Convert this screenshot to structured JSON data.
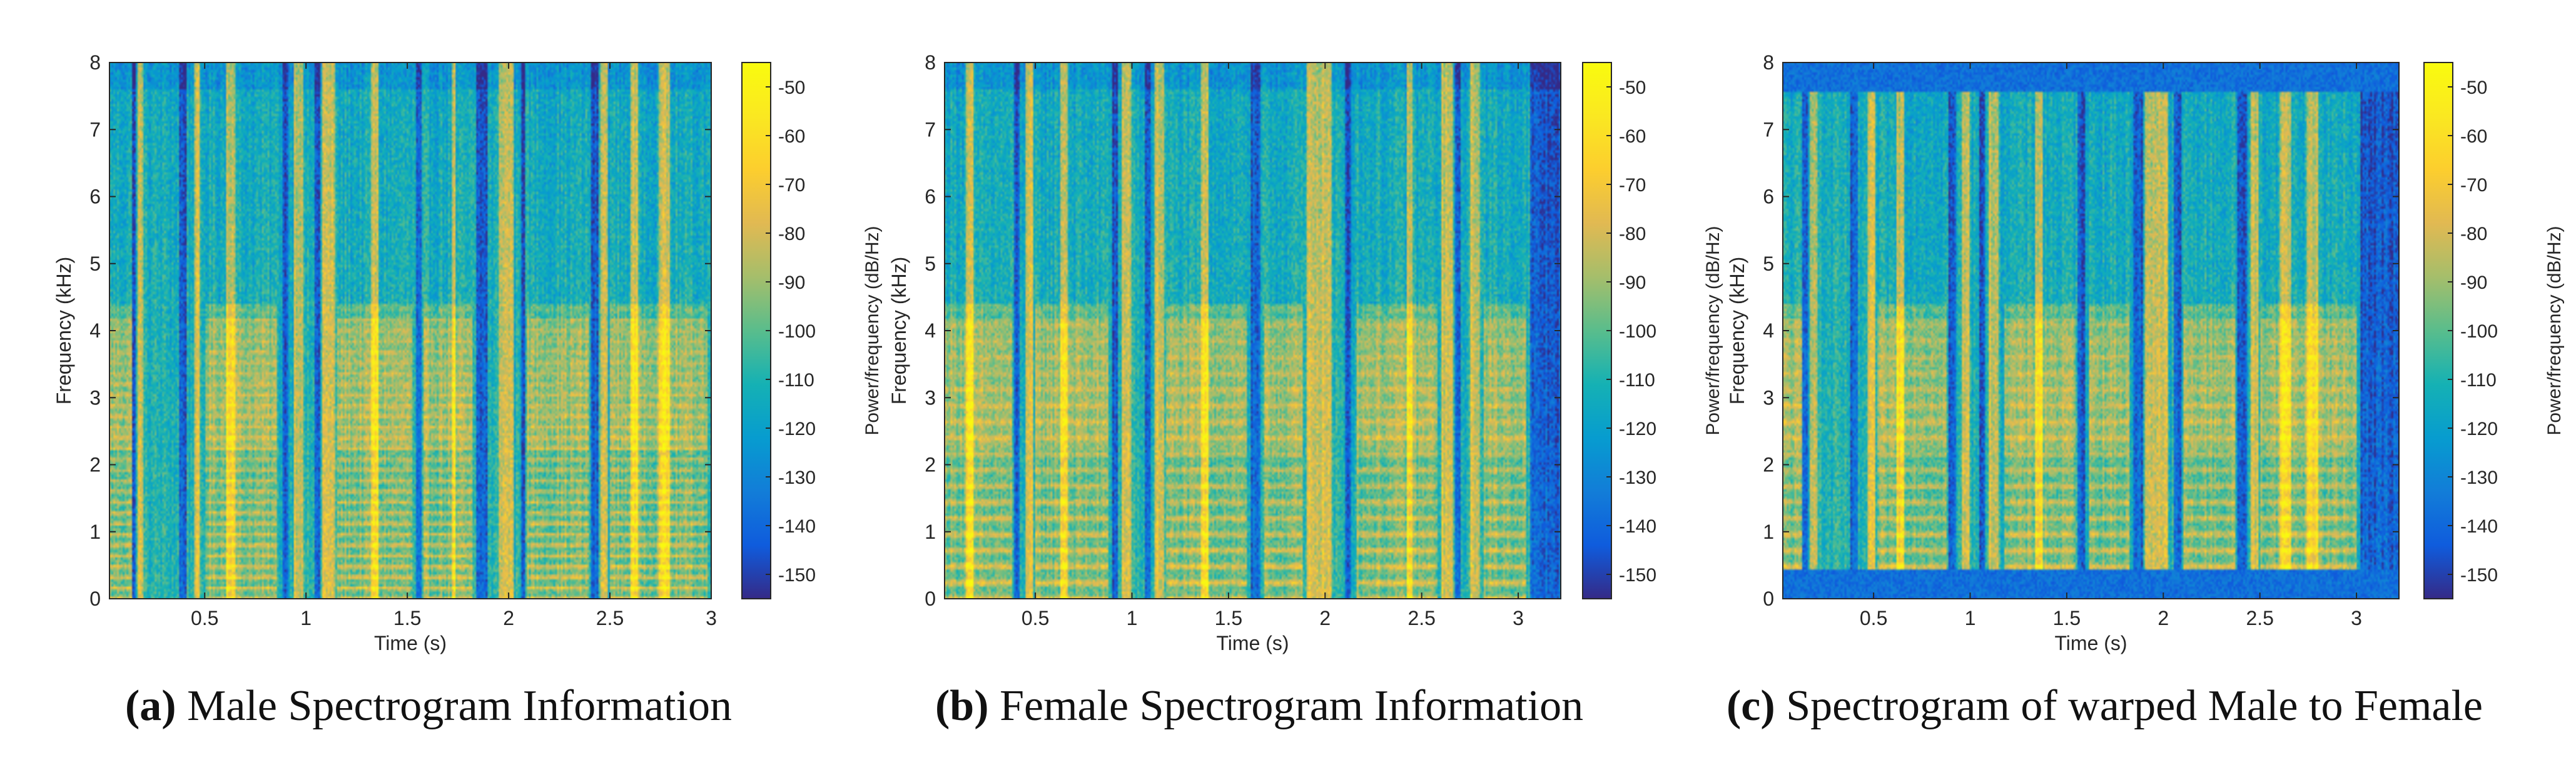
{
  "figure": {
    "panels": [
      {
        "tag": "(a)",
        "caption": "Male Spectrogram Information"
      },
      {
        "tag": "(b)",
        "caption": "Female Spectrogram Information"
      },
      {
        "tag": "(c)",
        "caption": "Spectrogram of warped Male to Female"
      }
    ]
  },
  "chart_data": [
    {
      "type": "heatmap",
      "name": "male-spectrogram",
      "title": "",
      "xlabel": "Time (s)",
      "ylabel": "Frequency (kHz)",
      "xlim": [
        0.03,
        3.0
      ],
      "ylim": [
        0,
        8
      ],
      "xticks": [
        0.5,
        1,
        1.5,
        2,
        2.5,
        3
      ],
      "xtick_labels": [
        "0.5",
        "1",
        "1.5",
        "2",
        "2.5",
        "3"
      ],
      "yticks": [
        0,
        1,
        2,
        3,
        4,
        5,
        6,
        7,
        8
      ],
      "ytick_labels": [
        "0",
        "1",
        "2",
        "3",
        "4",
        "5",
        "6",
        "7",
        "8"
      ],
      "colorbar": {
        "label": "Power/frequency (dB/Hz)",
        "range": [
          -155,
          -45
        ],
        "ticks": [
          -50,
          -60,
          -70,
          -80,
          -90,
          -100,
          -110,
          -120,
          -130,
          -140,
          -150
        ],
        "tick_labels": [
          "-50",
          "-60",
          "-70",
          "-80",
          "-90",
          "-100",
          "-110",
          "-120",
          "-130",
          "-140",
          "-150"
        ],
        "colormap": "parula"
      },
      "harmonic_spacing_khz": 0.16,
      "bright_bands_s": [
        [
          0.17,
          0.2
        ],
        [
          0.45,
          0.48
        ],
        [
          0.61,
          0.65
        ],
        [
          0.94,
          0.99
        ],
        [
          1.08,
          1.14
        ],
        [
          1.32,
          1.36
        ],
        [
          1.72,
          1.74
        ],
        [
          1.95,
          2.03
        ],
        [
          2.45,
          2.49
        ],
        [
          2.6,
          2.64
        ],
        [
          2.74,
          2.8
        ]
      ],
      "gap_bands_s": [
        [
          0.14,
          0.16
        ],
        [
          0.37,
          0.41
        ],
        [
          0.88,
          0.91
        ],
        [
          1.04,
          1.07
        ],
        [
          1.54,
          1.57
        ],
        [
          1.84,
          1.9
        ],
        [
          2.06,
          2.08
        ],
        [
          2.41,
          2.44
        ]
      ],
      "voiced_segments_s": [
        [
          0.03,
          0.14
        ],
        [
          0.5,
          0.86
        ],
        [
          1.15,
          1.52
        ],
        [
          1.58,
          1.82
        ],
        [
          2.09,
          2.4
        ],
        [
          2.5,
          2.98
        ]
      ],
      "warped": false
    },
    {
      "type": "heatmap",
      "name": "female-spectrogram",
      "title": "",
      "xlabel": "Time (s)",
      "ylabel": "Frequency (kHz)",
      "xlim": [
        0.03,
        3.22
      ],
      "ylim": [
        0,
        8
      ],
      "xticks": [
        0.5,
        1,
        1.5,
        2,
        2.5,
        3
      ],
      "xtick_labels": [
        "0.5",
        "1",
        "1.5",
        "2",
        "2.5",
        "3"
      ],
      "yticks": [
        0,
        1,
        2,
        3,
        4,
        5,
        6,
        7,
        8
      ],
      "ytick_labels": [
        "0",
        "1",
        "2",
        "3",
        "4",
        "5",
        "6",
        "7",
        "8"
      ],
      "colorbar": {
        "label": "Power/frequency (dB/Hz)",
        "range": [
          -155,
          -45
        ],
        "ticks": [
          -50,
          -60,
          -70,
          -80,
          -90,
          -100,
          -110,
          -120,
          -130,
          -140,
          -150
        ],
        "tick_labels": [
          "-50",
          "-60",
          "-70",
          "-80",
          "-90",
          "-100",
          "-110",
          "-120",
          "-130",
          "-140",
          "-150"
        ],
        "colormap": "parula"
      },
      "harmonic_spacing_khz": 0.24,
      "bright_bands_s": [
        [
          0.14,
          0.18
        ],
        [
          0.45,
          0.49
        ],
        [
          0.63,
          0.67
        ],
        [
          0.95,
          1.0
        ],
        [
          1.12,
          1.17
        ],
        [
          1.36,
          1.4
        ],
        [
          1.9,
          2.03
        ],
        [
          2.42,
          2.45
        ],
        [
          2.6,
          2.66
        ],
        [
          2.75,
          2.8
        ]
      ],
      "gap_bands_s": [
        [
          0.39,
          0.42
        ],
        [
          0.9,
          0.93
        ],
        [
          1.07,
          1.1
        ],
        [
          1.62,
          1.66
        ],
        [
          2.1,
          2.13
        ],
        [
          2.67,
          2.7
        ],
        [
          3.06,
          3.22
        ]
      ],
      "voiced_segments_s": [
        [
          0.03,
          0.38
        ],
        [
          0.5,
          0.88
        ],
        [
          1.18,
          1.6
        ],
        [
          1.68,
          1.88
        ],
        [
          2.16,
          2.58
        ],
        [
          2.82,
          3.04
        ]
      ],
      "warped": false
    },
    {
      "type": "heatmap",
      "name": "warped-spectrogram",
      "title": "",
      "xlabel": "Time (s)",
      "ylabel": "Frequency (kHz)",
      "xlim": [
        0.03,
        3.22
      ],
      "ylim": [
        0,
        8
      ],
      "xticks": [
        0.5,
        1,
        1.5,
        2,
        2.5,
        3
      ],
      "xtick_labels": [
        "0.5",
        "1",
        "1.5",
        "2",
        "2.5",
        "3"
      ],
      "yticks": [
        0,
        1,
        2,
        3,
        4,
        5,
        6,
        7,
        8
      ],
      "ytick_labels": [
        "0",
        "1",
        "2",
        "3",
        "4",
        "5",
        "6",
        "7",
        "8"
      ],
      "colorbar": {
        "label": "Power/frequency (dB/Hz)",
        "range": [
          -155,
          -45
        ],
        "ticks": [
          -50,
          -60,
          -70,
          -80,
          -90,
          -100,
          -110,
          -120,
          -130,
          -140,
          -150
        ],
        "tick_labels": [
          "-50",
          "-60",
          "-70",
          "-80",
          "-90",
          "-100",
          "-110",
          "-120",
          "-130",
          "-140",
          "-150"
        ],
        "colormap": "parula"
      },
      "harmonic_spacing_khz": 0.24,
      "bright_bands_s": [
        [
          0.17,
          0.21
        ],
        [
          0.47,
          0.51
        ],
        [
          0.62,
          0.66
        ],
        [
          0.96,
          1.0
        ],
        [
          1.1,
          1.15
        ],
        [
          1.34,
          1.38
        ],
        [
          1.9,
          2.02
        ],
        [
          2.45,
          2.49
        ],
        [
          2.6,
          2.66
        ],
        [
          2.74,
          2.8
        ]
      ],
      "gap_bands_s": [
        [
          0.13,
          0.16
        ],
        [
          0.38,
          0.42
        ],
        [
          0.89,
          0.93
        ],
        [
          1.05,
          1.08
        ],
        [
          1.56,
          1.6
        ],
        [
          1.84,
          1.89
        ],
        [
          2.05,
          2.09
        ],
        [
          2.38,
          2.43
        ],
        [
          3.02,
          3.22
        ]
      ],
      "voiced_segments_s": [
        [
          0.03,
          0.13
        ],
        [
          0.52,
          0.88
        ],
        [
          1.18,
          1.55
        ],
        [
          1.62,
          1.82
        ],
        [
          2.1,
          2.37
        ],
        [
          2.5,
          3.0
        ]
      ],
      "warped": true,
      "low_cutoff_khz": 0.45,
      "high_cutoff_khz": 7.55
    }
  ]
}
